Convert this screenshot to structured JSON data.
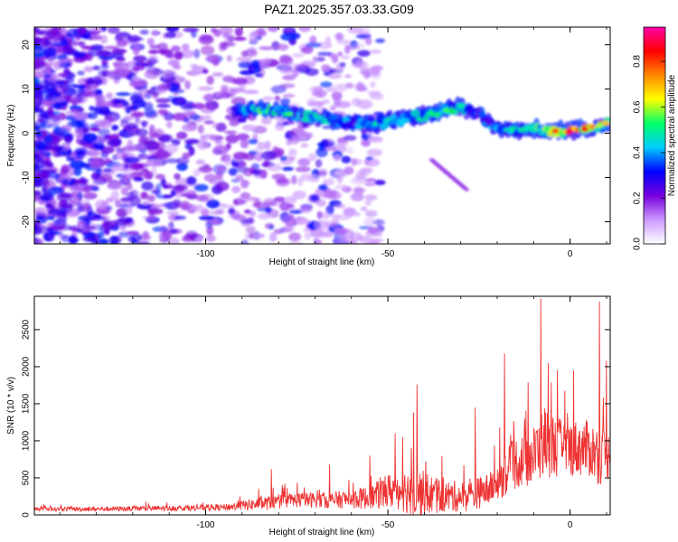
{
  "title": "PAZ1.2025.357.03.33.G09",
  "chart_data": [
    {
      "type": "heatmap",
      "xlabel": "Height of straight line (km)",
      "ylabel": "Frequency (Hz)",
      "xlim": [
        -147,
        11
      ],
      "ylim": [
        -25,
        24
      ],
      "xticks": [
        -100,
        -50,
        0
      ],
      "yticks": [
        -20,
        -10,
        0,
        10,
        20
      ],
      "colorbar": {
        "label": "Normalized spectral amplitude",
        "range": [
          0,
          0.95
        ],
        "ticks": [
          0.0,
          0.2,
          0.4,
          0.6,
          0.8
        ],
        "colors": [
          "#ffffff",
          "#cc99ff",
          "#7700dd",
          "#0000ff",
          "#00ccff",
          "#00ff66",
          "#ffff00",
          "#ff8800",
          "#ff0000",
          "#ff00aa"
        ]
      },
      "signal_ridge": {
        "x": [
          -92,
          -85,
          -80,
          -75,
          -70,
          -65,
          -60,
          -55,
          -50,
          -45,
          -40,
          -35,
          -30,
          -25,
          -20,
          -15,
          -10,
          -5,
          0,
          5,
          11
        ],
        "y": [
          5,
          5.5,
          5,
          4,
          3.5,
          3,
          2,
          2,
          2.5,
          3.5,
          4,
          5,
          6,
          4,
          1,
          0.5,
          1,
          0.5,
          0.5,
          1,
          2.5
        ],
        "peak_amp": [
          0.45,
          0.55,
          0.5,
          0.45,
          0.5,
          0.45,
          0.4,
          0.45,
          0.5,
          0.45,
          0.5,
          0.55,
          0.5,
          0.4,
          0.45,
          0.5,
          0.55,
          0.85,
          0.9,
          0.8,
          0.7
        ]
      }
    },
    {
      "type": "line",
      "xlabel": "Height of straight line (km)",
      "ylabel": "SNR (10 * v/v)",
      "xlim": [
        -147,
        11
      ],
      "ylim": [
        0,
        2950
      ],
      "xticks": [
        -100,
        -50,
        0
      ],
      "yticks": [
        0,
        500,
        1000,
        1500,
        2000,
        2500
      ],
      "color": "#ee3333",
      "envelope": {
        "x": [
          -147,
          -130,
          -110,
          -95,
          -85,
          -75,
          -65,
          -55,
          -48,
          -42,
          -35,
          -28,
          -22,
          -15,
          -10,
          -7,
          -3,
          0,
          5,
          8,
          11
        ],
        "baseline": [
          80,
          80,
          90,
          100,
          150,
          200,
          200,
          230,
          350,
          300,
          250,
          250,
          350,
          700,
          800,
          1000,
          900,
          900,
          900,
          800,
          800
        ],
        "amplitude": [
          60,
          70,
          80,
          100,
          200,
          230,
          250,
          350,
          600,
          750,
          500,
          450,
          500,
          800,
          900,
          1100,
          900,
          850,
          850,
          900,
          700
        ]
      },
      "peaks": [
        {
          "x": -82,
          "y": 620
        },
        {
          "x": -66,
          "y": 680
        },
        {
          "x": -55,
          "y": 800
        },
        {
          "x": -48,
          "y": 1100
        },
        {
          "x": -46,
          "y": 1050
        },
        {
          "x": -43,
          "y": 1380
        },
        {
          "x": -42,
          "y": 1760
        },
        {
          "x": -26,
          "y": 1450
        },
        {
          "x": -18,
          "y": 2180
        },
        {
          "x": -8,
          "y": 2920
        },
        {
          "x": -6,
          "y": 2050
        },
        {
          "x": 1,
          "y": 1950
        },
        {
          "x": 8,
          "y": 2880
        },
        {
          "x": 10,
          "y": 2080
        }
      ]
    }
  ]
}
